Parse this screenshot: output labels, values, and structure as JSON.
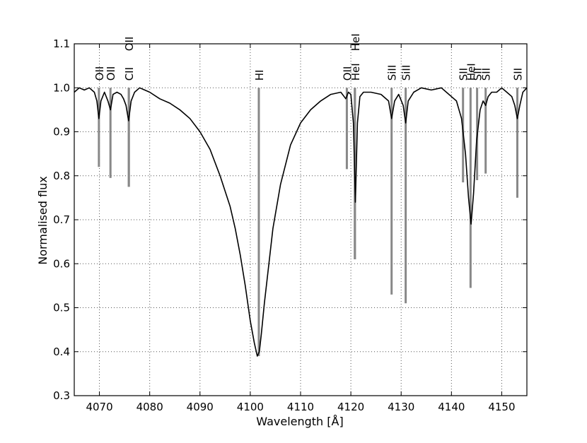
{
  "chart_data": {
    "type": "line",
    "title": "",
    "xlabel": "Wavelength [Å]",
    "ylabel": "Normalised flux",
    "xlim": [
      4065,
      4155
    ],
    "ylim": [
      0.3,
      1.1
    ],
    "grid": true,
    "x_ticks": [
      "4070",
      "4080",
      "4090",
      "4100",
      "4110",
      "4120",
      "4130",
      "4140",
      "4150"
    ],
    "y_ticks": [
      "0.3",
      "0.4",
      "0.5",
      "0.6",
      "0.7",
      "0.8",
      "0.9",
      "1.0",
      "1.1"
    ],
    "colors": {
      "spectrum": "#000000",
      "line_markers": "#888888",
      "grid": "#555555"
    },
    "series": [
      {
        "x": [
          4065,
          4066,
          4067,
          4068,
          4069,
          4069.5,
          4069.9,
          4070.3,
          4071,
          4071.7,
          4072.2,
          4072.7,
          4073.5,
          4074.3,
          4074.8,
          4075.3,
          4075.8,
          4076.3,
          4077,
          4078,
          4079,
          4080,
          4082,
          4084,
          4086,
          4088,
          4090,
          4092,
          4094,
          4096,
          4097,
          4098,
          4099,
          4100,
          4100.8,
          4101.4,
          4101.8,
          4102.2,
          4102.8,
          4103.5,
          4104.5,
          4106,
          4108,
          4110,
          4112,
          4114,
          4116,
          4118,
          4119,
          4119.5,
          4120,
          4120.5,
          4120.9,
          4121.3,
          4121.8,
          4122.5,
          4124,
          4126,
          4127.5,
          4128.1,
          4128.7,
          4129.5,
          4130.4,
          4130.9,
          4131.4,
          4132.5,
          4134,
          4136,
          4138,
          4140,
          4141,
          4142,
          4142.8,
          4143.4,
          4143.9,
          4144.4,
          4145,
          4145.7,
          4146.3,
          4146.8,
          4147.3,
          4148,
          4149,
          4150,
          4151,
          4152,
          4152.6,
          4153.1,
          4153.6,
          4154.2,
          4155
        ],
        "y": [
          0.99,
          1.0,
          0.995,
          1.0,
          0.99,
          0.97,
          0.93,
          0.97,
          0.99,
          0.97,
          0.95,
          0.985,
          0.99,
          0.985,
          0.975,
          0.96,
          0.925,
          0.97,
          0.99,
          1.0,
          0.995,
          0.99,
          0.975,
          0.965,
          0.95,
          0.93,
          0.9,
          0.86,
          0.8,
          0.73,
          0.68,
          0.62,
          0.55,
          0.47,
          0.42,
          0.39,
          0.4,
          0.44,
          0.51,
          0.58,
          0.68,
          0.78,
          0.87,
          0.92,
          0.95,
          0.97,
          0.985,
          0.99,
          0.975,
          0.99,
          0.985,
          0.92,
          0.74,
          0.92,
          0.98,
          0.99,
          0.99,
          0.985,
          0.97,
          0.93,
          0.97,
          0.985,
          0.96,
          0.92,
          0.97,
          0.99,
          1.0,
          0.995,
          1.0,
          0.98,
          0.97,
          0.93,
          0.85,
          0.75,
          0.69,
          0.76,
          0.88,
          0.95,
          0.97,
          0.96,
          0.98,
          0.99,
          0.99,
          1.0,
          0.99,
          0.98,
          0.96,
          0.93,
          0.96,
          0.99,
          1.0
        ]
      }
    ],
    "lines": [
      {
        "label": "OII",
        "x": 4069.9,
        "depth": 0.82
      },
      {
        "label": "OII",
        "x": 4072.2,
        "depth": 0.795
      },
      {
        "label": "CII",
        "x": 4075.85,
        "depth": 0.775
      },
      {
        "label": "OII",
        "x": 4075.85,
        "depth": 0.775
      },
      {
        "label": "HI",
        "x": 4101.7,
        "depth": 0.39
      },
      {
        "label": "OII",
        "x": 4119.2,
        "depth": 0.815
      },
      {
        "label": "HeI",
        "x": 4120.8,
        "depth": 0.61
      },
      {
        "label": "HeI",
        "x": 4120.8,
        "depth": 0.61
      },
      {
        "label": "SiII",
        "x": 4128.1,
        "depth": 0.53
      },
      {
        "label": "SiII",
        "x": 4130.9,
        "depth": 0.51
      },
      {
        "label": "SII",
        "x": 4142.3,
        "depth": 0.785
      },
      {
        "label": "HeI",
        "x": 4143.8,
        "depth": 0.545
      },
      {
        "label": "SII",
        "x": 4145.1,
        "depth": 0.79
      },
      {
        "label": "SII",
        "x": 4146.8,
        "depth": 0.805
      },
      {
        "label": "SII",
        "x": 4153.1,
        "depth": 0.75
      }
    ]
  }
}
